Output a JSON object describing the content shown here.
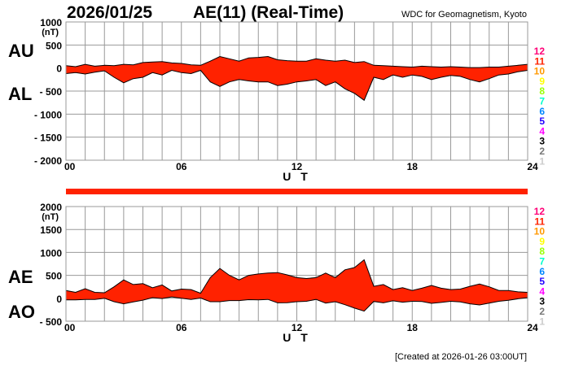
{
  "header": {
    "date": "2026/01/25",
    "title": "AE(11) (Real-Time)",
    "source": "WDC for Geomagnetism, Kyoto"
  },
  "footer": {
    "created": "[Created at 2026-01-26 03:00UT]"
  },
  "colors": {
    "fill": "#ff2200",
    "outline": "#000000",
    "grid": "#999999",
    "bar": "#ff2200"
  },
  "station_legend": [
    {
      "label": "12",
      "color": "#ff0077"
    },
    {
      "label": "11",
      "color": "#ff2200"
    },
    {
      "label": "10",
      "color": "#ff9900"
    },
    {
      "label": "9",
      "color": "#ffff00"
    },
    {
      "label": "8",
      "color": "#99ff00"
    },
    {
      "label": "7",
      "color": "#00ffcc"
    },
    {
      "label": "6",
      "color": "#0088ff"
    },
    {
      "label": "5",
      "color": "#2200ff"
    },
    {
      "label": "4",
      "color": "#ff00ff"
    },
    {
      "label": "3",
      "color": "#000000"
    },
    {
      "label": "2",
      "color": "#777777"
    },
    {
      "label": "1",
      "color": "#cccccc"
    }
  ],
  "chart_data": [
    {
      "type": "area",
      "name": "AU/AL",
      "labels": {
        "upper": "AU",
        "lower": "AL"
      },
      "unit": "(nT)",
      "xlabel": "U T",
      "xlim": [
        0,
        24
      ],
      "ylim": [
        -2000,
        1000
      ],
      "xticks": [
        "00",
        "06",
        "12",
        "18",
        "24"
      ],
      "yticks": [
        "1000",
        "500",
        "0",
        "- 500",
        "- 1000",
        "- 1500",
        "- 2000"
      ],
      "ytick_values": [
        1000,
        500,
        0,
        -500,
        -1000,
        -1500,
        -2000
      ],
      "grid": true,
      "x": [
        0,
        0.5,
        1,
        1.5,
        2,
        2.5,
        3,
        3.5,
        4,
        4.5,
        5,
        5.5,
        6,
        6.5,
        7,
        7.5,
        8,
        8.5,
        9,
        9.5,
        10,
        10.5,
        11,
        11.5,
        12,
        12.5,
        13,
        13.5,
        14,
        14.5,
        15,
        15.5,
        16,
        16.5,
        17,
        17.5,
        18,
        18.5,
        19,
        19.5,
        20,
        20.5,
        21,
        21.5,
        22,
        22.5,
        23,
        23.5,
        24
      ],
      "series": [
        {
          "name": "AU",
          "values": [
            50,
            30,
            80,
            40,
            60,
            50,
            80,
            70,
            120,
            130,
            140,
            110,
            100,
            70,
            60,
            150,
            250,
            200,
            150,
            220,
            230,
            250,
            180,
            160,
            150,
            150,
            200,
            170,
            150,
            170,
            120,
            140,
            60,
            50,
            40,
            30,
            20,
            40,
            30,
            20,
            30,
            20,
            10,
            10,
            20,
            20,
            40,
            60,
            80
          ]
        },
        {
          "name": "AL",
          "values": [
            -120,
            -100,
            -130,
            -90,
            -60,
            -200,
            -320,
            -230,
            -200,
            -100,
            -150,
            -50,
            -100,
            -120,
            -50,
            -300,
            -400,
            -300,
            -250,
            -280,
            -300,
            -300,
            -380,
            -350,
            -300,
            -280,
            -250,
            -380,
            -300,
            -450,
            -550,
            -700,
            -200,
            -250,
            -150,
            -200,
            -150,
            -180,
            -250,
            -200,
            -160,
            -180,
            -250,
            -300,
            -230,
            -150,
            -130,
            -80,
            -50
          ]
        }
      ]
    },
    {
      "type": "area",
      "name": "AE/AO",
      "labels": {
        "upper": "AE",
        "lower": "AO"
      },
      "unit": "(nT)",
      "xlabel": "U T",
      "xlim": [
        0,
        24
      ],
      "ylim": [
        -500,
        2000
      ],
      "xticks": [
        "00",
        "06",
        "12",
        "18",
        "24"
      ],
      "yticks": [
        "2000",
        "1500",
        "1000",
        "500",
        "0",
        "- 500"
      ],
      "ytick_values": [
        2000,
        1500,
        1000,
        500,
        0,
        -500
      ],
      "grid": true,
      "x": [
        0,
        0.5,
        1,
        1.5,
        2,
        2.5,
        3,
        3.5,
        4,
        4.5,
        5,
        5.5,
        6,
        6.5,
        7,
        7.5,
        8,
        8.5,
        9,
        9.5,
        10,
        10.5,
        11,
        11.5,
        12,
        12.5,
        13,
        13.5,
        14,
        14.5,
        15,
        15.5,
        16,
        16.5,
        17,
        17.5,
        18,
        18.5,
        19,
        19.5,
        20,
        20.5,
        21,
        21.5,
        22,
        22.5,
        23,
        23.5,
        24
      ],
      "series": [
        {
          "name": "AE",
          "values": [
            170,
            130,
            210,
            130,
            120,
            250,
            400,
            300,
            320,
            230,
            290,
            160,
            200,
            190,
            110,
            450,
            650,
            500,
            400,
            500,
            530,
            550,
            560,
            510,
            450,
            430,
            450,
            550,
            450,
            620,
            670,
            840,
            260,
            300,
            190,
            230,
            170,
            220,
            280,
            220,
            190,
            200,
            260,
            310,
            250,
            170,
            170,
            140,
            130
          ]
        },
        {
          "name": "AO",
          "values": [
            -35,
            -35,
            -25,
            -25,
            0,
            -75,
            -120,
            -80,
            -40,
            15,
            -5,
            30,
            0,
            -25,
            5,
            -75,
            -75,
            -50,
            -50,
            -30,
            -35,
            -25,
            -100,
            -95,
            -75,
            -65,
            -25,
            -105,
            -75,
            -140,
            -215,
            -280,
            -70,
            -100,
            -55,
            -85,
            -65,
            -70,
            -110,
            -90,
            -65,
            -80,
            -120,
            -145,
            -105,
            -65,
            -45,
            -10,
            15
          ]
        }
      ]
    }
  ]
}
